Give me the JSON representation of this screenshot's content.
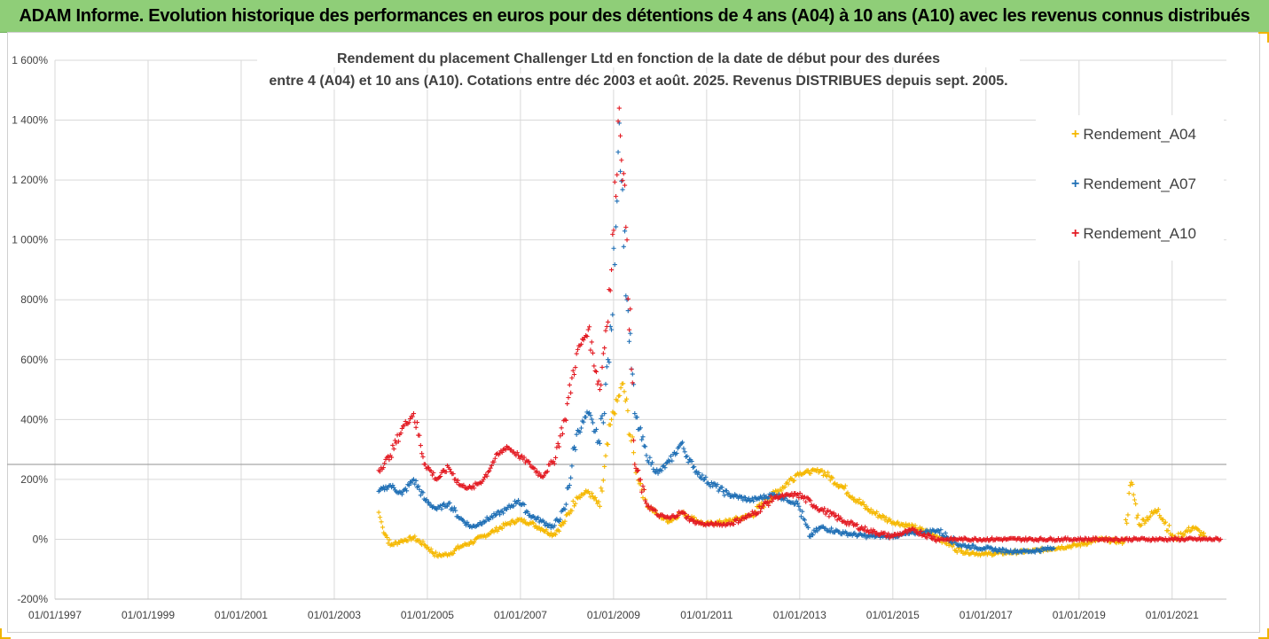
{
  "banner": {
    "text": "ADAM Informe. Evolution historique des performances en euros pour des détentions de 4 ans (A04) à 10 ans (A10) avec les revenus connus distribués"
  },
  "colors": {
    "a04": "#f5b800",
    "a07": "#1f6fb5",
    "a10": "#e31b23",
    "banner_bg": "#8fce78"
  },
  "chart_data": {
    "type": "scatter",
    "title_lines": [
      "Rendement du placement Challenger Ltd en fonction de la date de début pour des durées",
      "entre 4 (A04) et 10 ans (A10). Cotations entre déc 2003 et août. 2025. Revenus DISTRIBUES depuis sept. 2005."
    ],
    "x_axis": {
      "type": "date",
      "range": [
        "1997-01-01",
        "2022-03-01"
      ],
      "tick_labels": [
        "01/01/1997",
        "01/01/1999",
        "01/01/2001",
        "01/01/2003",
        "01/01/2005",
        "01/01/2007",
        "01/01/2009",
        "01/01/2011",
        "01/01/2013",
        "01/01/2015",
        "01/01/2017",
        "01/01/2019",
        "01/01/2021"
      ]
    },
    "y_axis": {
      "range": [
        -200,
        1600
      ],
      "unit": "%",
      "tick_labels": [
        "-200%",
        "0%",
        "200%",
        "400%",
        "600%",
        "800%",
        "1 000%",
        "1 200%",
        "1 400%",
        "1 600%"
      ]
    },
    "reference_line_y": 250,
    "legend_position": "top-right",
    "series": [
      {
        "name": "Rendement_A04",
        "color": "#f5b800",
        "points": [
          [
            "2003-12-15",
            90
          ],
          [
            "2004-01-15",
            40
          ],
          [
            "2004-03-15",
            -20
          ],
          [
            "2004-06-15",
            -5
          ],
          [
            "2004-09-15",
            5
          ],
          [
            "2004-12-15",
            -20
          ],
          [
            "2005-03-15",
            -55
          ],
          [
            "2005-06-15",
            -50
          ],
          [
            "2005-09-15",
            -25
          ],
          [
            "2005-12-15",
            -10
          ],
          [
            "2006-03-15",
            10
          ],
          [
            "2006-06-15",
            30
          ],
          [
            "2006-09-15",
            50
          ],
          [
            "2006-12-15",
            65
          ],
          [
            "2007-03-15",
            55
          ],
          [
            "2007-06-15",
            35
          ],
          [
            "2007-09-15",
            15
          ],
          [
            "2007-12-15",
            60
          ],
          [
            "2008-03-15",
            140
          ],
          [
            "2008-06-15",
            160
          ],
          [
            "2008-09-15",
            110
          ],
          [
            "2008-12-15",
            400
          ],
          [
            "2009-03-15",
            520
          ],
          [
            "2009-06-15",
            250
          ],
          [
            "2009-09-15",
            120
          ],
          [
            "2009-12-15",
            80
          ],
          [
            "2010-03-15",
            60
          ],
          [
            "2010-06-15",
            90
          ],
          [
            "2010-09-15",
            70
          ],
          [
            "2010-12-15",
            50
          ],
          [
            "2011-06-15",
            60
          ],
          [
            "2011-12-15",
            80
          ],
          [
            "2012-06-15",
            150
          ],
          [
            "2012-12-15",
            220
          ],
          [
            "2013-06-15",
            230
          ],
          [
            "2013-12-15",
            170
          ],
          [
            "2014-06-15",
            100
          ],
          [
            "2014-12-15",
            60
          ],
          [
            "2015-06-15",
            40
          ],
          [
            "2015-12-15",
            10
          ],
          [
            "2016-06-15",
            -40
          ],
          [
            "2016-12-15",
            -50
          ],
          [
            "2017-06-15",
            -45
          ],
          [
            "2017-12-15",
            -40
          ],
          [
            "2018-06-15",
            -30
          ],
          [
            "2018-12-15",
            -20
          ],
          [
            "2019-06-15",
            0
          ],
          [
            "2019-12-15",
            -10
          ],
          [
            "2020-02-15",
            190
          ],
          [
            "2020-04-15",
            50
          ],
          [
            "2020-09-15",
            100
          ],
          [
            "2021-01-15",
            0
          ],
          [
            "2021-06-15",
            40
          ],
          [
            "2021-09-15",
            10
          ]
        ]
      },
      {
        "name": "Rendement_A07",
        "color": "#1f6fb5",
        "points": [
          [
            "2003-12-15",
            160
          ],
          [
            "2004-03-15",
            180
          ],
          [
            "2004-06-15",
            150
          ],
          [
            "2004-09-15",
            200
          ],
          [
            "2004-12-15",
            130
          ],
          [
            "2005-03-15",
            100
          ],
          [
            "2005-06-15",
            120
          ],
          [
            "2005-09-15",
            70
          ],
          [
            "2005-12-15",
            40
          ],
          [
            "2006-03-15",
            60
          ],
          [
            "2006-06-15",
            80
          ],
          [
            "2006-09-15",
            100
          ],
          [
            "2006-12-15",
            130
          ],
          [
            "2007-03-15",
            80
          ],
          [
            "2007-06-15",
            60
          ],
          [
            "2007-09-15",
            40
          ],
          [
            "2007-12-15",
            100
          ],
          [
            "2008-03-15",
            350
          ],
          [
            "2008-06-15",
            420
          ],
          [
            "2008-09-15",
            320
          ],
          [
            "2008-12-15",
            700
          ],
          [
            "2009-02-15",
            1390
          ],
          [
            "2009-04-15",
            800
          ],
          [
            "2009-06-15",
            420
          ],
          [
            "2009-09-15",
            280
          ],
          [
            "2009-12-15",
            220
          ],
          [
            "2010-03-15",
            260
          ],
          [
            "2010-06-15",
            320
          ],
          [
            "2010-09-15",
            240
          ],
          [
            "2010-12-15",
            200
          ],
          [
            "2011-06-15",
            150
          ],
          [
            "2011-12-15",
            130
          ],
          [
            "2012-06-15",
            150
          ],
          [
            "2012-12-15",
            120
          ],
          [
            "2013-03-15",
            10
          ],
          [
            "2013-06-15",
            40
          ],
          [
            "2013-12-15",
            20
          ],
          [
            "2014-06-15",
            10
          ],
          [
            "2014-12-15",
            10
          ],
          [
            "2015-06-15",
            20
          ],
          [
            "2015-12-15",
            30
          ],
          [
            "2016-06-15",
            -20
          ],
          [
            "2016-12-15",
            -30
          ],
          [
            "2017-06-15",
            -40
          ],
          [
            "2017-12-15",
            -40
          ],
          [
            "2018-06-15",
            -30
          ]
        ]
      },
      {
        "name": "Rendement_A10",
        "color": "#e31b23",
        "points": [
          [
            "2003-12-15",
            230
          ],
          [
            "2004-03-15",
            280
          ],
          [
            "2004-06-15",
            370
          ],
          [
            "2004-09-15",
            420
          ],
          [
            "2004-12-15",
            250
          ],
          [
            "2005-03-15",
            200
          ],
          [
            "2005-06-15",
            240
          ],
          [
            "2005-09-15",
            180
          ],
          [
            "2005-12-15",
            170
          ],
          [
            "2006-03-15",
            200
          ],
          [
            "2006-06-15",
            270
          ],
          [
            "2006-09-15",
            310
          ],
          [
            "2006-12-15",
            280
          ],
          [
            "2007-03-15",
            250
          ],
          [
            "2007-06-15",
            210
          ],
          [
            "2007-09-15",
            260
          ],
          [
            "2007-12-15",
            400
          ],
          [
            "2008-03-15",
            620
          ],
          [
            "2008-06-15",
            700
          ],
          [
            "2008-09-15",
            500
          ],
          [
            "2008-12-15",
            900
          ],
          [
            "2009-02-15",
            1440
          ],
          [
            "2009-04-15",
            1000
          ],
          [
            "2009-06-15",
            250
          ],
          [
            "2009-09-15",
            120
          ],
          [
            "2009-12-15",
            80
          ],
          [
            "2010-03-15",
            70
          ],
          [
            "2010-06-15",
            90
          ],
          [
            "2010-09-15",
            60
          ],
          [
            "2010-12-15",
            50
          ],
          [
            "2011-06-15",
            50
          ],
          [
            "2011-12-15",
            80
          ],
          [
            "2012-06-15",
            140
          ],
          [
            "2012-12-15",
            150
          ],
          [
            "2013-06-15",
            100
          ],
          [
            "2013-12-15",
            60
          ],
          [
            "2014-06-15",
            30
          ],
          [
            "2014-12-15",
            10
          ],
          [
            "2015-06-15",
            30
          ],
          [
            "2015-12-15",
            0
          ],
          [
            "2016-06-15",
            0
          ],
          [
            "2017-06-15",
            0
          ],
          [
            "2018-06-15",
            0
          ],
          [
            "2019-06-15",
            0
          ],
          [
            "2020-06-15",
            0
          ],
          [
            "2021-06-15",
            0
          ],
          [
            "2022-01-15",
            0
          ]
        ]
      }
    ]
  }
}
